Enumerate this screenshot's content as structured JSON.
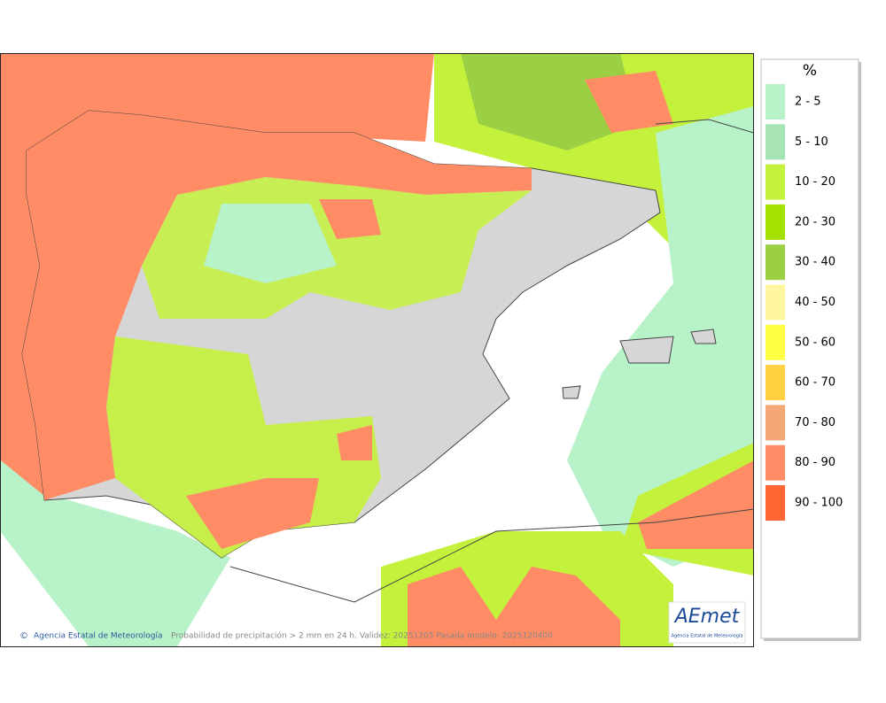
{
  "legend": {
    "title": "%",
    "items": [
      {
        "label": "2 - 5",
        "color": "#b8f2c8"
      },
      {
        "label": "5 - 10",
        "color": "#a6e4b4"
      },
      {
        "label": "10 - 20",
        "color": "#c4f23c"
      },
      {
        "label": "20 - 30",
        "color": "#a4e000"
      },
      {
        "label": "30 - 40",
        "color": "#9cd044"
      },
      {
        "label": "40 - 50",
        "color": "#fff7a0"
      },
      {
        "label": "50 - 60",
        "color": "#ffff44"
      },
      {
        "label": "60 - 70",
        "color": "#ffd040"
      },
      {
        "label": "70 - 80",
        "color": "#f4a878"
      },
      {
        "label": "80 - 90",
        "color": "#ff8c64"
      },
      {
        "label": "90 - 100",
        "color": "#ff6634"
      }
    ]
  },
  "footer": {
    "credit": "Agencia Estatal de Meteorología",
    "caption": "Probabilidad de precipitación > 2 mm en 24 h. Validez: 20251205 Pasada modelo: 2025120400"
  },
  "logo": {
    "brand": "AEmet",
    "subtitle": "Agencia Estatal de Meteorología"
  }
}
